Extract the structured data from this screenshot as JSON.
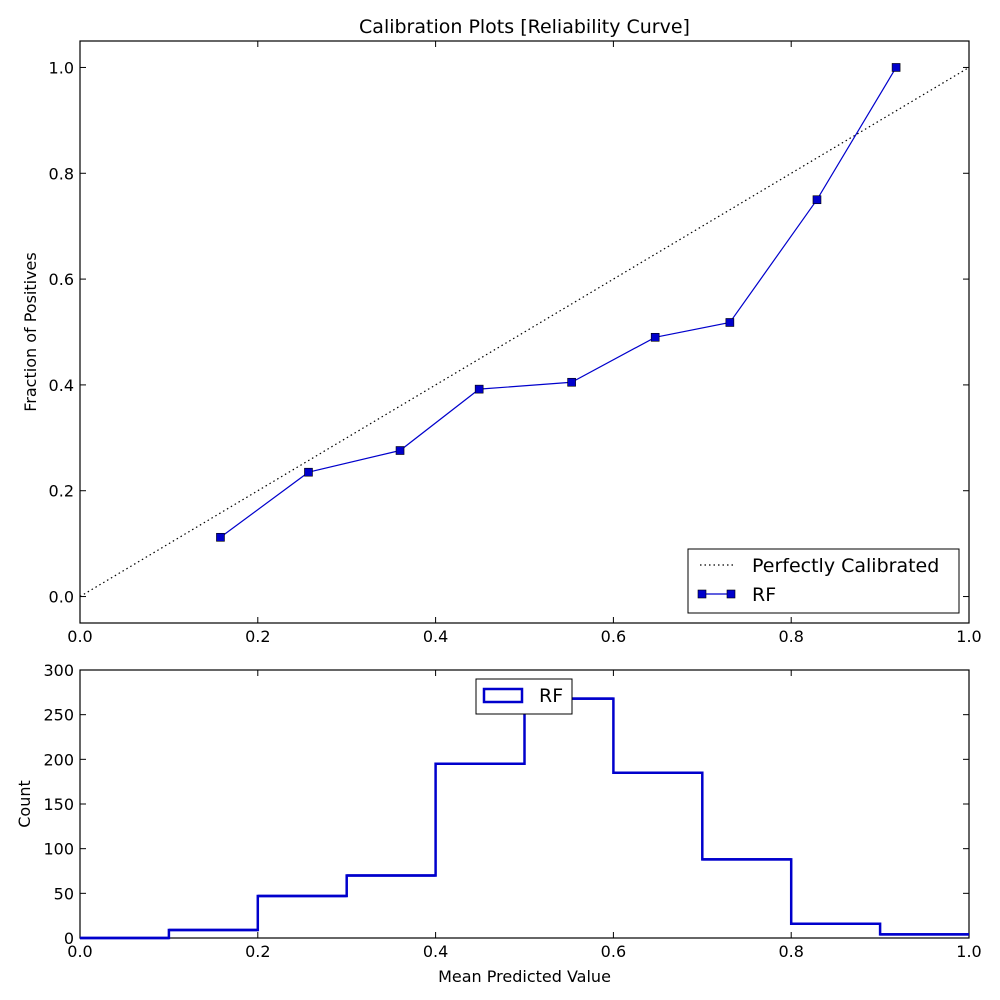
{
  "chart_data": [
    {
      "type": "line",
      "title": "Calibration Plots  [Reliability Curve]",
      "xlabel": "",
      "ylabel": "Fraction of Positives",
      "xlim": [
        0.0,
        1.0
      ],
      "ylim": [
        -0.05,
        1.05
      ],
      "x_ticks": [
        "0.0",
        "0.2",
        "0.4",
        "0.6",
        "0.8",
        "1.0"
      ],
      "y_ticks": [
        "0.0",
        "0.2",
        "0.4",
        "0.6",
        "0.8",
        "1.0"
      ],
      "legend_position": "bottom-right",
      "series": [
        {
          "name": "Perfectly Calibrated",
          "style": "dotted",
          "color": "#000000",
          "x": [
            0.0,
            1.0
          ],
          "y": [
            0.0,
            1.0
          ]
        },
        {
          "name": "RF",
          "style": "solid-square-markers",
          "color": "#0000cc",
          "x": [
            0.158,
            0.257,
            0.36,
            0.449,
            0.553,
            0.647,
            0.731,
            0.829,
            0.918
          ],
          "y": [
            0.112,
            0.235,
            0.276,
            0.392,
            0.405,
            0.49,
            0.518,
            0.75,
            1.0
          ]
        }
      ]
    },
    {
      "type": "bar",
      "subtype": "step-histogram",
      "title": "",
      "xlabel": "Mean Predicted Value",
      "ylabel": "Count",
      "xlim": [
        0.0,
        1.0
      ],
      "ylim": [
        0,
        300
      ],
      "x_ticks": [
        "0.0",
        "0.2",
        "0.4",
        "0.6",
        "0.8",
        "1.0"
      ],
      "y_ticks": [
        "0",
        "50",
        "100",
        "150",
        "200",
        "250",
        "300"
      ],
      "legend_position": "top-center",
      "bin_edges": [
        0.0,
        0.1,
        0.2,
        0.3,
        0.4,
        0.5,
        0.6,
        0.7,
        0.8,
        0.9,
        1.0
      ],
      "series": [
        {
          "name": "RF",
          "color": "#0000cc",
          "values": [
            0,
            9,
            47,
            70,
            195,
            268,
            185,
            88,
            16,
            4
          ]
        }
      ]
    }
  ]
}
